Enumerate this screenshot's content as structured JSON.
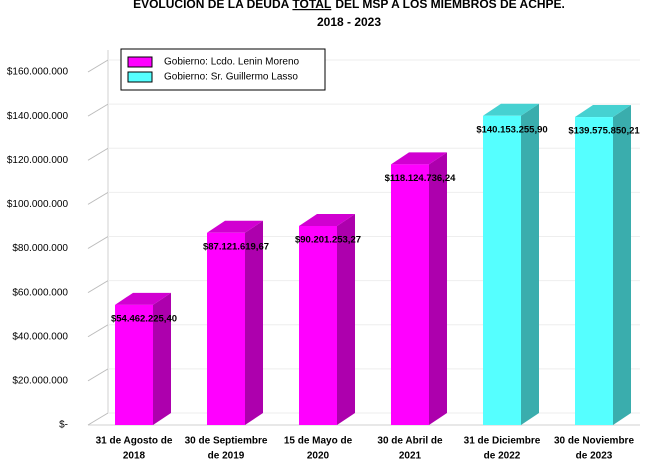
{
  "chart_data": {
    "type": "bar",
    "title_parts": [
      "EVOLUCION DE LA DEUDA",
      "TOTAL",
      "DEL MSP A LOS MIEMBROS DE ACHPE."
    ],
    "subtitle": "2018 - 2023",
    "categories": [
      [
        "31 de Agosto de",
        "2018"
      ],
      [
        "30 de Septiembre",
        "de 2019"
      ],
      [
        "15 de Mayo de",
        "2020"
      ],
      [
        "30 de Abril de",
        "2021"
      ],
      [
        "31 de Diciembre",
        "de 2022"
      ],
      [
        "30 de Noviembre",
        "de 2023"
      ]
    ],
    "series": [
      {
        "name": "Gobierno: Lcdo. Lenin Moreno",
        "color": "#ff00ff",
        "values": [
          54462225.4,
          87121619.67,
          90201253.27,
          118124736.24,
          null,
          null
        ],
        "value_labels": [
          "$54.462.225,40",
          "$87.121.619,67",
          "$90.201.253,27",
          "$118.124.736,24",
          null,
          null
        ]
      },
      {
        "name": "Gobierno: Sr. Guillermo Lasso",
        "color": "#55ffff",
        "values": [
          null,
          null,
          null,
          null,
          140153255.9,
          139575850.21
        ],
        "value_labels": [
          null,
          null,
          null,
          null,
          "$140.153.255,90",
          "$139.575.850,21"
        ]
      }
    ],
    "ylim": [
      0,
      160000000
    ],
    "yticks": [
      {
        "value": 0,
        "label": "$-"
      },
      {
        "value": 20000000,
        "label": "$20.000.000"
      },
      {
        "value": 40000000,
        "label": "$40.000.000"
      },
      {
        "value": 60000000,
        "label": "$60.000.000"
      },
      {
        "value": 80000000,
        "label": "$80.000.000"
      },
      {
        "value": 100000000,
        "label": "$100.000.000"
      },
      {
        "value": 120000000,
        "label": "$120.000.000"
      },
      {
        "value": 140000000,
        "label": "$140.000.000"
      },
      {
        "value": 160000000,
        "label": "$160.000.000"
      }
    ],
    "grid": true
  }
}
